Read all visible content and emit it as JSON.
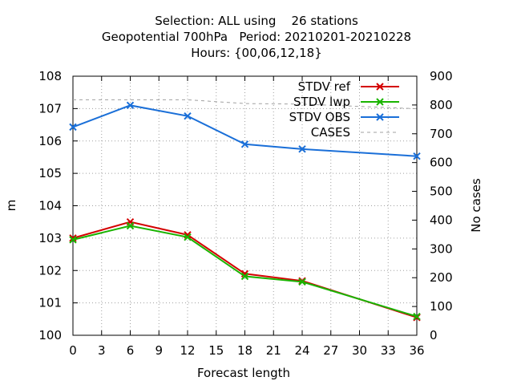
{
  "chart_data": {
    "type": "line",
    "title_lines": [
      "Selection: ALL using    26 stations",
      "Geopotential 700hPa   Period: 20210201-20210228",
      "Hours: {00,06,12,18}"
    ],
    "xlabel": "Forecast length",
    "ylabel": "m",
    "y2label": "No cases",
    "x": [
      0,
      6,
      12,
      18,
      24,
      36
    ],
    "xlim": [
      0,
      36
    ],
    "xticks": [
      0,
      3,
      6,
      9,
      12,
      15,
      18,
      21,
      24,
      27,
      30,
      33,
      36
    ],
    "ylim": [
      100,
      108
    ],
    "yticks": [
      100,
      101,
      102,
      103,
      104,
      105,
      106,
      107,
      108
    ],
    "y2lim": [
      0,
      900
    ],
    "y2ticks": [
      0,
      100,
      200,
      300,
      400,
      500,
      600,
      700,
      800,
      900
    ],
    "grid": true,
    "legend_position": "top-right",
    "series": [
      {
        "name": "STDV ref",
        "color": "#d40000",
        "axis": "y1",
        "marker": "x",
        "values": [
          103.0,
          103.5,
          103.1,
          101.9,
          101.68,
          100.55
        ]
      },
      {
        "name": "STDV lwp",
        "color": "#19b400",
        "axis": "y1",
        "marker": "x",
        "values": [
          102.95,
          103.38,
          103.03,
          101.82,
          101.65,
          100.58
        ]
      },
      {
        "name": "STDV OBS",
        "color": "#1a6fd8",
        "axis": "y1",
        "marker": "x",
        "values": [
          106.43,
          107.1,
          106.77,
          105.9,
          105.75,
          105.53
        ]
      },
      {
        "name": "CASES",
        "color": "#a0a0a0",
        "axis": "y2",
        "marker": "none",
        "dashed": true,
        "values": [
          818,
          818,
          818,
          805,
          803,
          787
        ]
      }
    ]
  }
}
